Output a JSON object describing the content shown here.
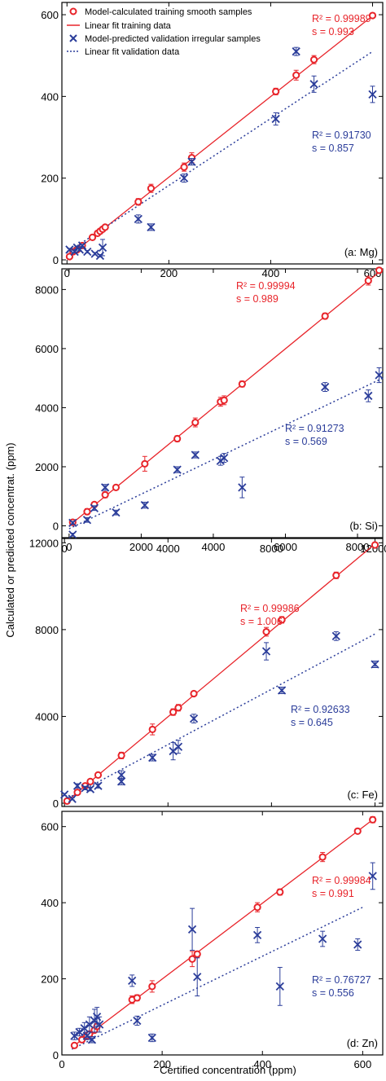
{
  "figure": {
    "ylabel": "Calculated or predicted concentrat. (ppm)",
    "xlabel": "Certified concentration (ppm)"
  },
  "legend": {
    "items": [
      {
        "label": "Model-calculated training smooth samples",
        "color": "#e8242a"
      },
      {
        "label": "Linear fit training data",
        "color": "#e8242a"
      },
      {
        "label": "Model-predicted validation irregular samples",
        "color": "#2b3d9a"
      },
      {
        "label": "Linear fit validation data",
        "color": "#2b3d9a"
      }
    ]
  },
  "colors": {
    "training": "#e8242a",
    "validation": "#2b3d9a",
    "axis": "#000000"
  },
  "chart_data": [
    {
      "type": "scatter",
      "panel_label": "(a: Mg)",
      "xlim": [
        -10,
        620
      ],
      "ylim": [
        -10,
        630
      ],
      "xticks": [
        0,
        200,
        400,
        600
      ],
      "yticks": [
        0,
        200,
        400,
        600
      ],
      "xtick_position": "bottom",
      "training_stats": {
        "r2": "R² = 0.99989",
        "s": "s = 0.993"
      },
      "validation_stats": {
        "r2": "R² = 0.91730",
        "s": "s = 0.857"
      },
      "training_fit": {
        "x": [
          0,
          600
        ],
        "y": [
          5,
          597
        ]
      },
      "validation_fit": {
        "x": [
          0,
          600
        ],
        "y": [
          18,
          510
        ]
      },
      "series": [
        {
          "name": "Model-calculated training smooth samples",
          "marker": "circle",
          "x": [
            5,
            12,
            20,
            30,
            50,
            60,
            65,
            70,
            75,
            140,
            165,
            230,
            245,
            410,
            450,
            485,
            600
          ],
          "y": [
            8,
            20,
            25,
            35,
            55,
            65,
            70,
            75,
            80,
            142,
            175,
            227,
            250,
            412,
            452,
            490,
            598
          ],
          "err": [
            4,
            4,
            4,
            4,
            5,
            5,
            5,
            5,
            5,
            8,
            10,
            10,
            12,
            8,
            12,
            10,
            5
          ]
        },
        {
          "name": "Model-predicted validation irregular samples",
          "marker": "x",
          "x": [
            5,
            15,
            20,
            25,
            30,
            40,
            55,
            65,
            70,
            140,
            165,
            230,
            245,
            410,
            450,
            485,
            600
          ],
          "y": [
            25,
            20,
            30,
            25,
            35,
            20,
            15,
            10,
            30,
            100,
            80,
            200,
            240,
            345,
            510,
            430,
            405
          ],
          "err": [
            3,
            3,
            3,
            3,
            3,
            3,
            3,
            3,
            20,
            10,
            8,
            10,
            8,
            15,
            10,
            20,
            20
          ]
        }
      ]
    },
    {
      "type": "scatter",
      "panel_label": "(b: Si)",
      "xlim": [
        -200,
        8700
      ],
      "ylim": [
        -400,
        8700
      ],
      "xticks": [
        0,
        2000,
        4000,
        6000,
        8000
      ],
      "yticks": [
        0,
        2000,
        4000,
        6000,
        8000
      ],
      "xtick_position": "bottom",
      "training_stats": {
        "r2": "R² = 0.99994",
        "s": "s = 0.989"
      },
      "validation_stats": {
        "r2": "R² = 0.91273",
        "s": "s = 0.569"
      },
      "training_fit": {
        "x": [
          0,
          8700
        ],
        "y": [
          0,
          8690
        ]
      },
      "validation_fit": {
        "x": [
          0,
          8700
        ],
        "y": [
          -100,
          5000
        ]
      },
      "series": [
        {
          "name": "Model-calculated training smooth samples",
          "marker": "circle",
          "x": [
            100,
            500,
            700,
            1000,
            1300,
            2100,
            3000,
            3500,
            4200,
            4300,
            4800,
            7100,
            8300,
            8600
          ],
          "y": [
            120,
            480,
            720,
            1050,
            1300,
            2100,
            2950,
            3500,
            4200,
            4250,
            4800,
            7100,
            8300,
            8650
          ],
          "err": [
            50,
            100,
            80,
            100,
            80,
            250,
            100,
            150,
            150,
            150,
            100,
            100,
            150,
            80
          ]
        },
        {
          "name": "Model-predicted validation irregular samples",
          "marker": "x",
          "x": [
            100,
            100,
            500,
            700,
            1000,
            1300,
            2100,
            3000,
            3500,
            4200,
            4300,
            4800,
            7100,
            8300,
            8600
          ],
          "y": [
            100,
            -300,
            200,
            600,
            1300,
            450,
            700,
            1900,
            2400,
            2200,
            2300,
            1300,
            4700,
            4400,
            5100
          ],
          "err": [
            50,
            50,
            80,
            80,
            100,
            80,
            100,
            100,
            100,
            150,
            150,
            350,
            150,
            200,
            250
          ]
        }
      ]
    },
    {
      "type": "scatter",
      "panel_label": "(c: Fe)",
      "xlim": [
        -100,
        12300
      ],
      "ylim": [
        -150,
        12200
      ],
      "xticks": [
        0,
        4000,
        8000,
        12000
      ],
      "yticks": [
        0,
        4000,
        8000,
        12000
      ],
      "xtick_position": "top",
      "training_stats": {
        "r2": "R² = 0.99986",
        "s": "s = 1.006"
      },
      "validation_stats": {
        "r2": "R² = 0.92633",
        "s": "s = 0.645"
      },
      "training_fit": {
        "x": [
          0,
          12000
        ],
        "y": [
          0,
          11950
        ]
      },
      "validation_fit": {
        "x": [
          0,
          12000
        ],
        "y": [
          150,
          7800
        ]
      },
      "series": [
        {
          "name": "Model-calculated training smooth samples",
          "marker": "circle",
          "x": [
            100,
            500,
            800,
            1000,
            1300,
            2200,
            3400,
            4200,
            4400,
            5000,
            7800,
            8400,
            10500,
            12000
          ],
          "y": [
            100,
            500,
            800,
            1000,
            1300,
            2200,
            3400,
            4200,
            4400,
            5050,
            7900,
            8450,
            10500,
            11900
          ],
          "err": [
            50,
            100,
            80,
            100,
            100,
            150,
            250,
            150,
            150,
            100,
            200,
            150,
            150,
            100
          ]
        },
        {
          "name": "Model-predicted validation irregular samples",
          "marker": "x",
          "x": [
            0,
            300,
            500,
            800,
            1000,
            1300,
            2200,
            2200,
            3400,
            4200,
            4400,
            5000,
            7800,
            8400,
            10500,
            12000
          ],
          "y": [
            400,
            200,
            800,
            700,
            650,
            800,
            1300,
            1000,
            2100,
            2400,
            2600,
            3900,
            7000,
            5200,
            7700,
            6400
          ],
          "err": [
            50,
            50,
            100,
            80,
            80,
            100,
            200,
            150,
            150,
            400,
            300,
            200,
            400,
            150,
            200,
            150
          ]
        }
      ]
    },
    {
      "type": "scatter",
      "panel_label": "(d: Zn)",
      "xlim": [
        0,
        640
      ],
      "ylim": [
        0,
        640
      ],
      "xticks": [
        0,
        200,
        400,
        600
      ],
      "yticks": [
        0,
        200,
        400,
        600
      ],
      "xtick_position": "bottom",
      "training_stats": {
        "r2": "R² = 0.99984",
        "s": "s = 0.991"
      },
      "validation_stats": {
        "r2": "R² = 0.76727",
        "s": "s = 0.556"
      },
      "training_fit": {
        "x": [
          20,
          620
        ],
        "y": [
          20,
          618
        ]
      },
      "validation_fit": {
        "x": [
          20,
          600
        ],
        "y": [
          15,
          388
        ]
      },
      "series": [
        {
          "name": "Model-calculated training smooth samples",
          "marker": "circle",
          "x": [
            25,
            40,
            50,
            55,
            65,
            70,
            140,
            150,
            180,
            260,
            270,
            390,
            435,
            520,
            590,
            620
          ],
          "y": [
            25,
            40,
            50,
            55,
            65,
            75,
            145,
            150,
            180,
            252,
            265,
            388,
            428,
            520,
            588,
            618
          ],
          "err": [
            4,
            4,
            4,
            4,
            5,
            5,
            10,
            8,
            15,
            20,
            8,
            12,
            8,
            12,
            5,
            8
          ]
        },
        {
          "name": "Model-predicted validation irregular samples",
          "marker": "x",
          "x": [
            25,
            35,
            45,
            50,
            55,
            60,
            65,
            70,
            75,
            140,
            150,
            180,
            260,
            270,
            390,
            435,
            520,
            590,
            620
          ],
          "y": [
            50,
            60,
            70,
            50,
            80,
            40,
            90,
            100,
            80,
            195,
            90,
            45,
            330,
            205,
            315,
            180,
            305,
            290,
            470
          ],
          "err": [
            10,
            10,
            15,
            10,
            20,
            8,
            30,
            25,
            20,
            15,
            12,
            10,
            55,
            50,
            20,
            50,
            20,
            15,
            35
          ]
        }
      ]
    }
  ]
}
